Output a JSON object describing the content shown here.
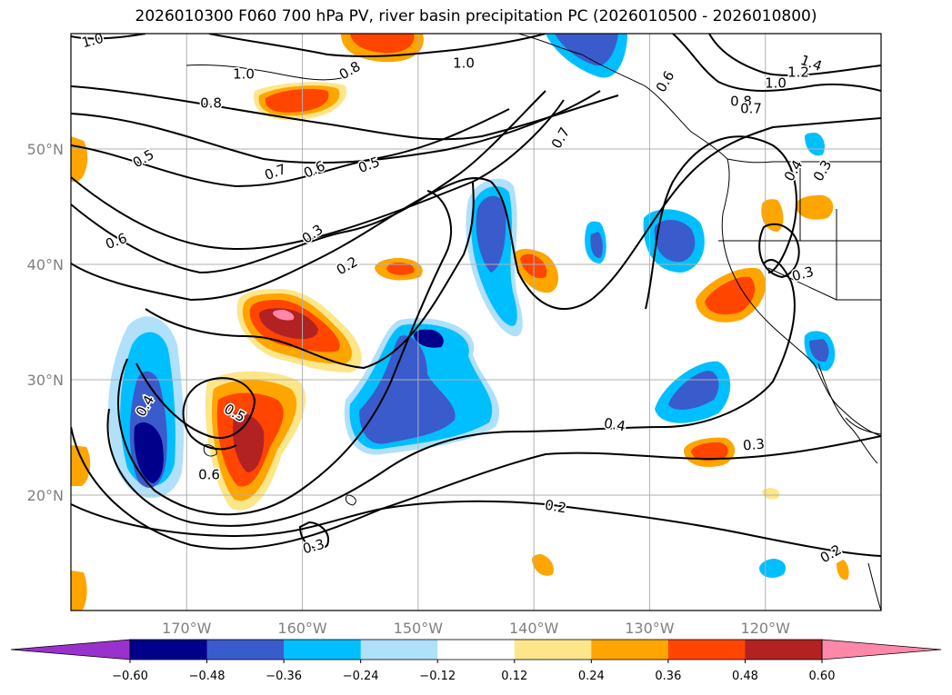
{
  "title": "2026010300 F060 700 hPa PV, river basin precipitation PC (2026010500 - 2026010800)",
  "lat_labels": [
    "50°N",
    "40°N",
    "30°N",
    "20°N"
  ],
  "lon_labels": [
    "170°W",
    "160°W",
    "150°W",
    "140°W",
    "130°W",
    "120°W"
  ],
  "contour_labels": [
    "1.0",
    "1.0",
    "1.0",
    "0.8",
    "0.8",
    "1.4",
    "1.2",
    "1.0",
    "0.6",
    "0.8",
    "0.7",
    "0.7",
    "0.5",
    "0.6",
    "0.7",
    "0.6",
    "0.5",
    "0.3",
    "0.2",
    "0.4",
    "0.5",
    "0.6",
    "0.4",
    "0.3",
    "0.2",
    "0.3",
    "0.2",
    "0.3",
    "0.4",
    "0.3"
  ],
  "colorbar": {
    "ticks": [
      "−0.60",
      "−0.48",
      "−0.36",
      "−0.24",
      "−0.12",
      "0.12",
      "0.24",
      "0.36",
      "0.48",
      "0.60"
    ],
    "colors": [
      "#9932cc",
      "#00008b",
      "#3a5bcc",
      "#00bfff",
      "#b0e0fa",
      "#ffffff",
      "#fde68a",
      "#ffa500",
      "#ff4500",
      "#b22222",
      "#ff88aa"
    ]
  },
  "chart_data": {
    "type": "heatmap",
    "title": "2026010300 F060 700 hPa PV, river basin precipitation PC (2026010500 - 2026010800)",
    "xlabel": "",
    "ylabel": "",
    "xlim": [
      -180,
      -110
    ],
    "ylim": [
      10,
      60
    ],
    "grid": true,
    "colorbar_levels": [
      -0.6,
      -0.48,
      -0.36,
      -0.24,
      -0.12,
      0.12,
      0.24,
      0.36,
      0.48,
      0.6
    ],
    "contour_field": "700 hPa PV",
    "contour_levels": [
      0.2,
      0.3,
      0.4,
      0.5,
      0.6,
      0.7,
      0.8,
      1.0,
      1.2,
      1.4
    ]
  }
}
